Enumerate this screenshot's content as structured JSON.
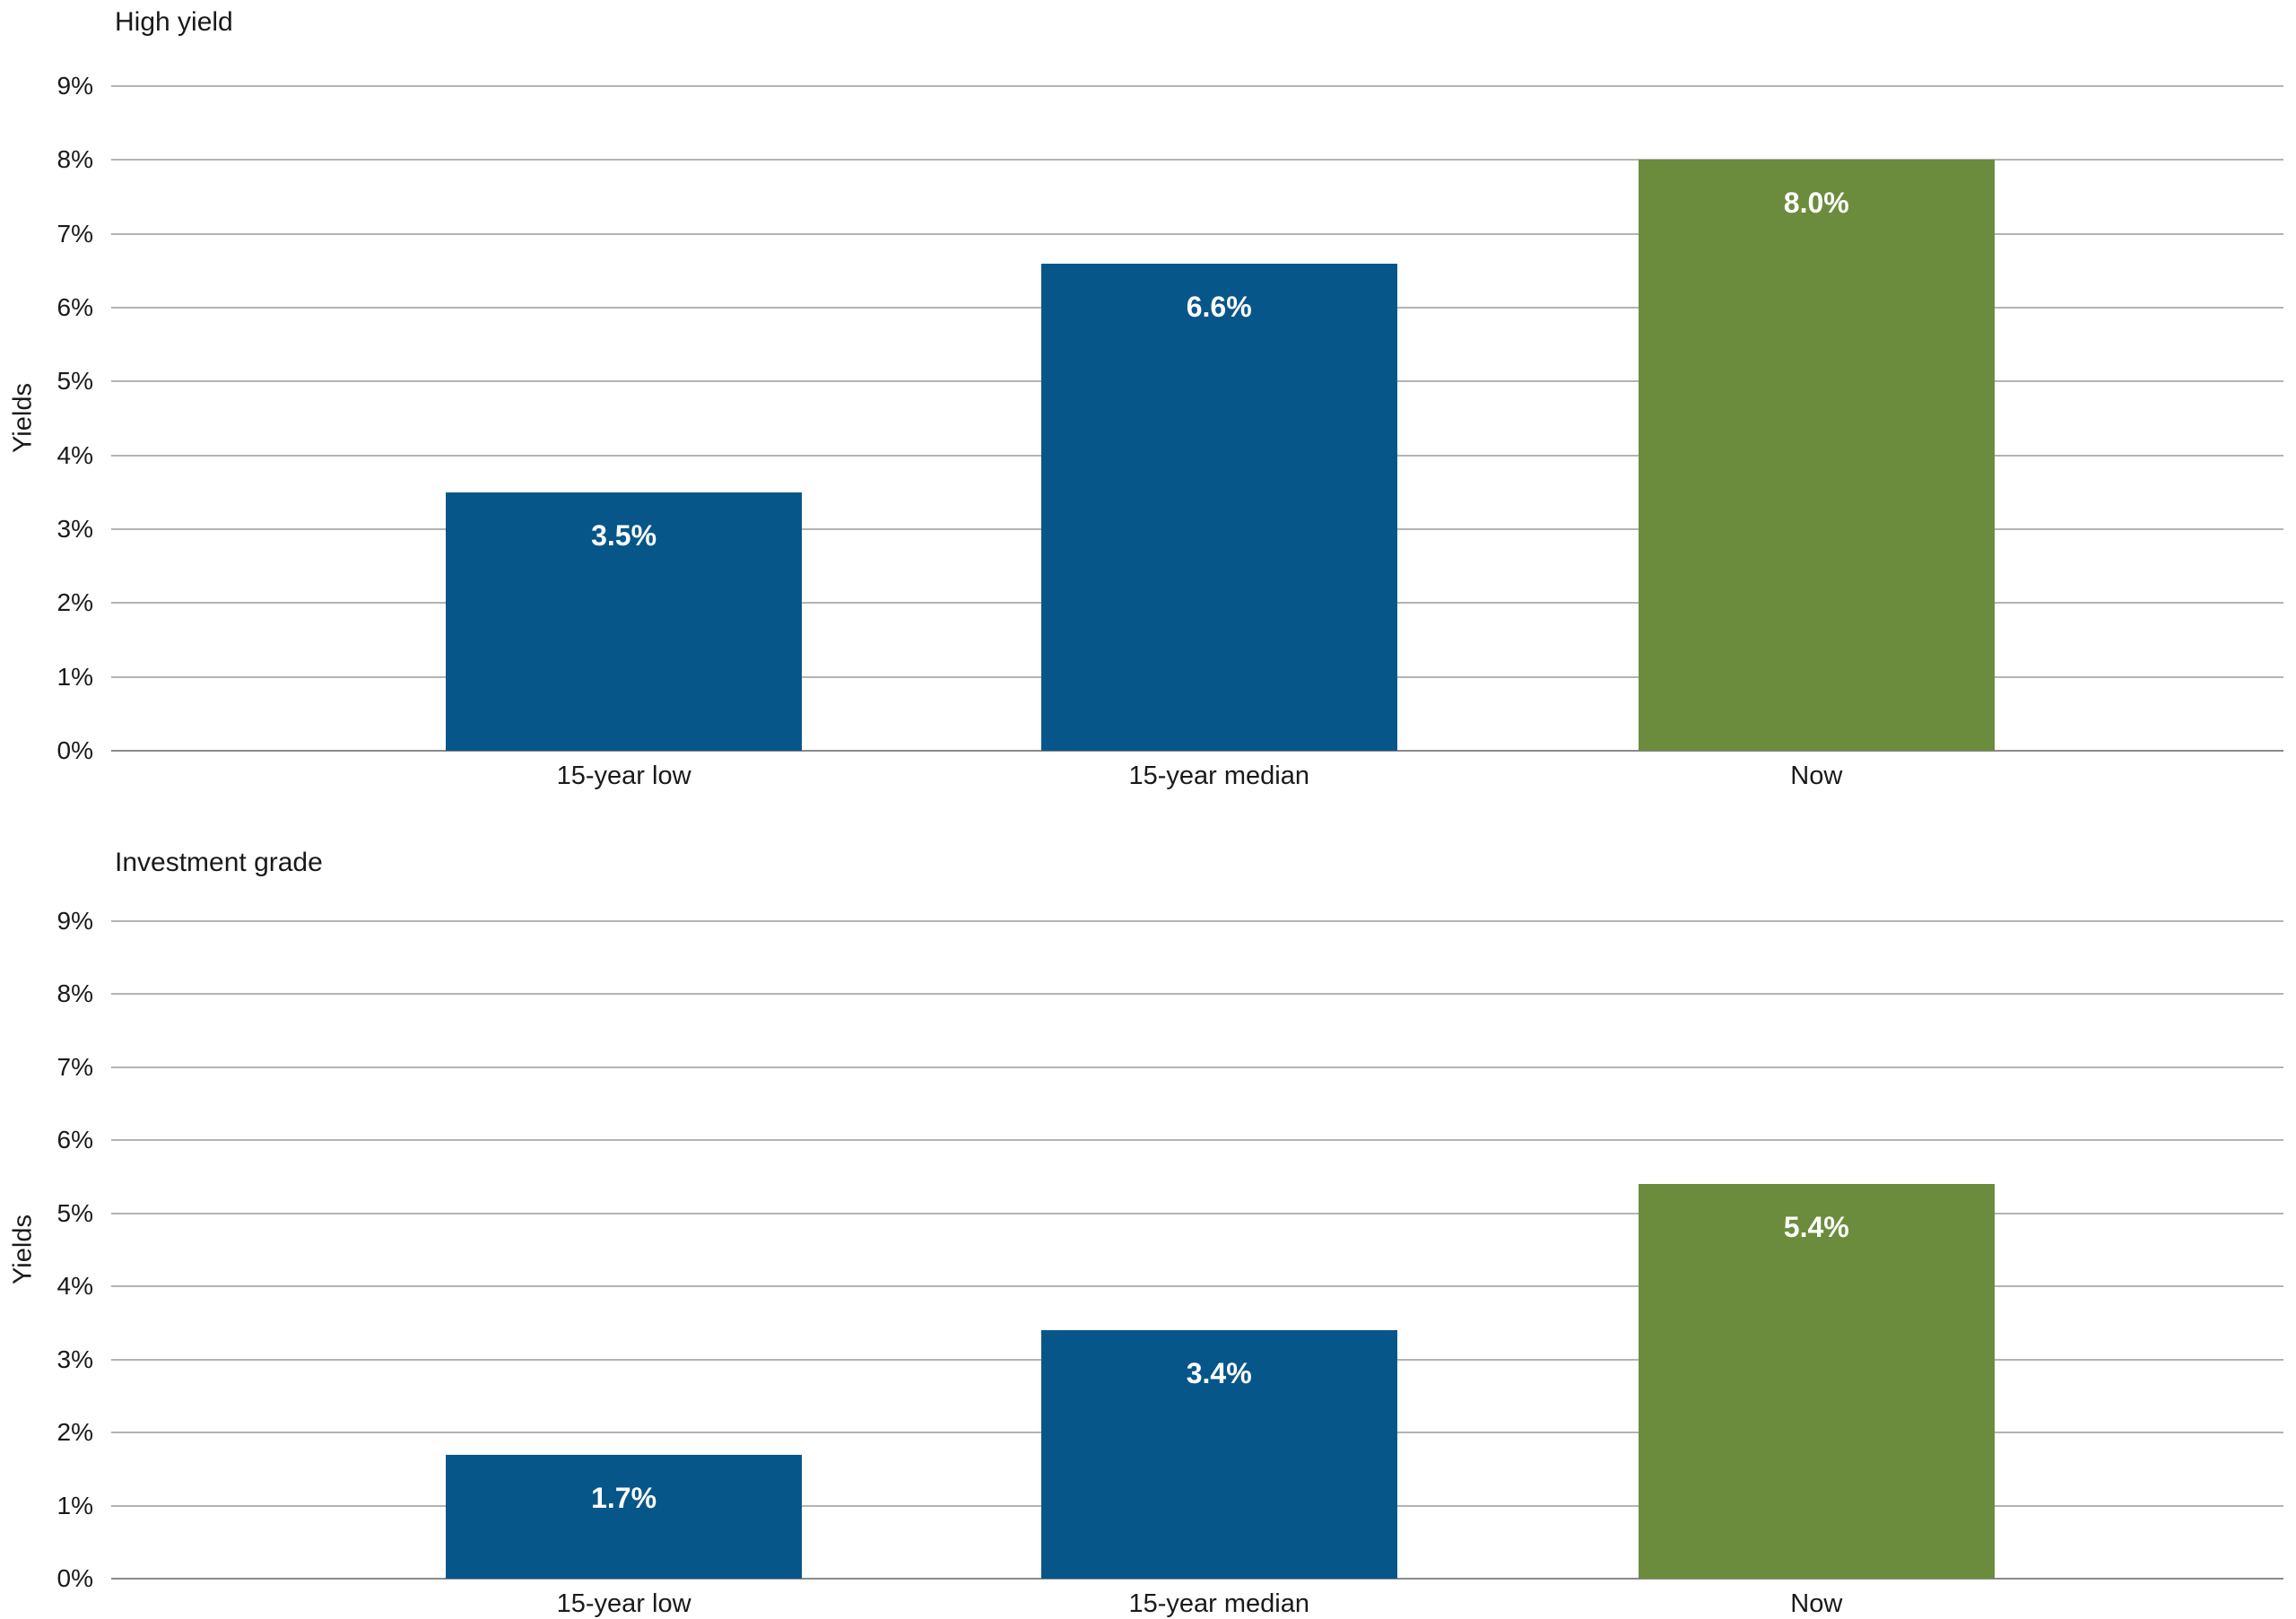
{
  "colors": {
    "bar_blue": "#07568a",
    "bar_green": "#6a8c3c",
    "grid": "#b3b3b3",
    "axis_baseline": "#8a8a8a",
    "text": "#1a1a1a",
    "value_label_text": "#ffffff"
  },
  "chart_data": [
    {
      "type": "bar",
      "title": "High yield",
      "xlabel": "",
      "ylabel": "Yields",
      "categories": [
        "15-year low",
        "15-year median",
        "Now"
      ],
      "values": [
        3.5,
        6.6,
        8.0
      ],
      "value_labels": [
        "3.5%",
        "6.6%",
        "8.0%"
      ],
      "bar_colors": [
        "#07568a",
        "#07568a",
        "#6a8c3c"
      ],
      "ylim": [
        0,
        9
      ],
      "ytick_step": 1,
      "ytick_labels": [
        "0%",
        "1%",
        "2%",
        "3%",
        "4%",
        "5%",
        "6%",
        "7%",
        "8%",
        "9%"
      ],
      "grid": true,
      "legend_position": "none"
    },
    {
      "type": "bar",
      "title": "Investment grade",
      "xlabel": "",
      "ylabel": "Yields",
      "categories": [
        "15-year low",
        "15-year median",
        "Now"
      ],
      "values": [
        1.7,
        3.4,
        5.4
      ],
      "value_labels": [
        "1.7%",
        "3.4%",
        "5.4%"
      ],
      "bar_colors": [
        "#07568a",
        "#07568a",
        "#6a8c3c"
      ],
      "ylim": [
        0,
        9
      ],
      "ytick_step": 1,
      "ytick_labels": [
        "0%",
        "1%",
        "2%",
        "3%",
        "4%",
        "5%",
        "6%",
        "7%",
        "8%",
        "9%"
      ],
      "grid": true,
      "legend_position": "none"
    }
  ]
}
